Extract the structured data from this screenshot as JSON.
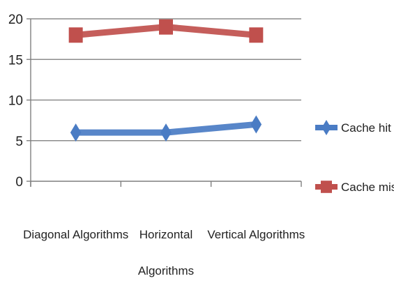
{
  "chart_data": {
    "type": "line",
    "categories": [
      "Diagonal Algorithms",
      "Horizontal Algorithms",
      "Vertical Algorithms"
    ],
    "category_lines": [
      [
        "Diagonal Algorithms"
      ],
      [
        "Horizontal",
        "Algorithms"
      ],
      [
        "Vertical Algorithms"
      ]
    ],
    "series": [
      {
        "name": "Cache hit",
        "values": [
          6,
          6,
          7
        ],
        "color": "#4a7cc4",
        "marker": "diamond"
      },
      {
        "name": "Cache miss",
        "values": [
          18,
          19,
          18
        ],
        "color": "#c0504d",
        "marker": "square"
      }
    ],
    "title": "",
    "xlabel": "",
    "ylabel": "",
    "ylim": [
      0,
      20
    ],
    "yticks": [
      0,
      5,
      10,
      15,
      20
    ],
    "grid": true,
    "legend": "right"
  }
}
